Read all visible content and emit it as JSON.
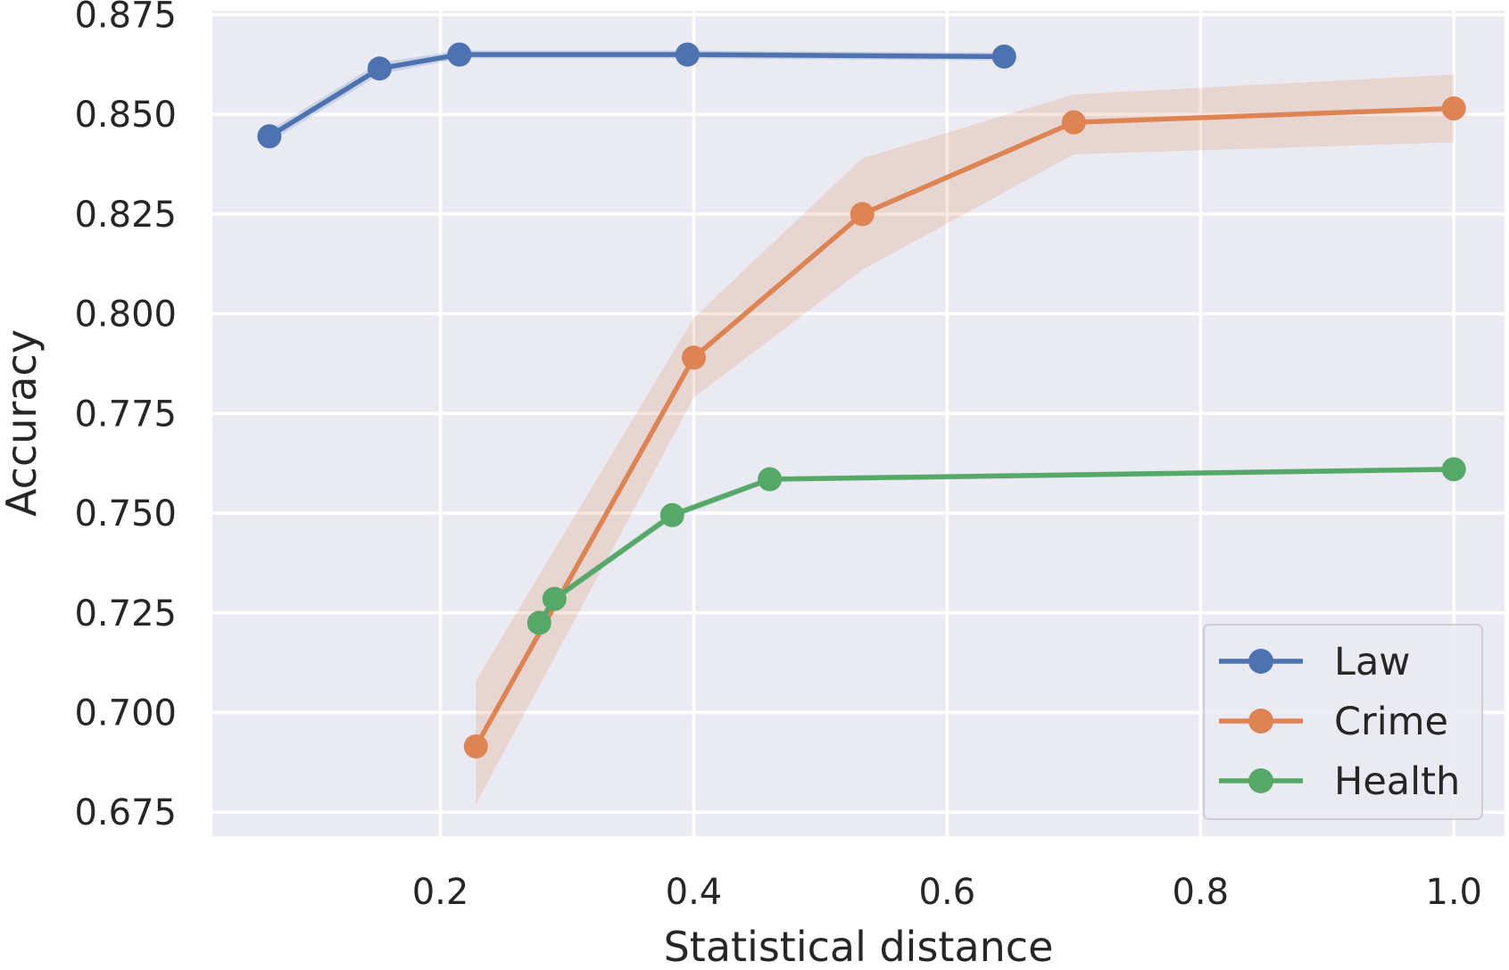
{
  "chart_data": {
    "type": "line",
    "title": "",
    "xlabel": "Statistical distance",
    "ylabel": "Accuracy",
    "xlim": [
      0.02,
      1.04
    ],
    "ylim": [
      0.669,
      0.876
    ],
    "x_ticks": [
      0.2,
      0.4,
      0.6,
      0.8,
      1.0
    ],
    "x_tick_labels": [
      "0.2",
      "0.4",
      "0.6",
      "0.8",
      "1.0"
    ],
    "y_ticks": [
      0.675,
      0.7,
      0.725,
      0.75,
      0.775,
      0.8,
      0.825,
      0.85,
      0.875
    ],
    "y_tick_labels": [
      "0.675",
      "0.700",
      "0.725",
      "0.750",
      "0.775",
      "0.800",
      "0.825",
      "0.850",
      "0.875"
    ],
    "grid": true,
    "legend_position": "lower-right",
    "series": [
      {
        "name": "Law",
        "color": "#4C72B0",
        "x": [
          0.065,
          0.152,
          0.215,
          0.395,
          0.645
        ],
        "y": [
          0.8445,
          0.8615,
          0.865,
          0.865,
          0.8645
        ],
        "band_lower": [
          0.843,
          0.86,
          0.864,
          0.864,
          0.8635
        ],
        "band_upper": [
          0.846,
          0.863,
          0.866,
          0.866,
          0.8655
        ]
      },
      {
        "name": "Crime",
        "color": "#DD8452",
        "x": [
          0.228,
          0.4,
          0.533,
          0.7,
          1.0
        ],
        "y": [
          0.6915,
          0.789,
          0.825,
          0.848,
          0.8515
        ],
        "band_lower": [
          0.677,
          0.779,
          0.811,
          0.84,
          0.843
        ],
        "band_upper": [
          0.708,
          0.799,
          0.839,
          0.855,
          0.86
        ]
      },
      {
        "name": "Health",
        "color": "#55A868",
        "x": [
          0.278,
          0.29,
          0.383,
          0.46,
          1.0
        ],
        "y": [
          0.7225,
          0.7285,
          0.7495,
          0.7585,
          0.761
        ],
        "band_lower": [
          0.7215,
          0.7275,
          0.7485,
          0.7578,
          0.7603
        ],
        "band_upper": [
          0.7235,
          0.7295,
          0.7505,
          0.7592,
          0.7617
        ]
      }
    ]
  }
}
